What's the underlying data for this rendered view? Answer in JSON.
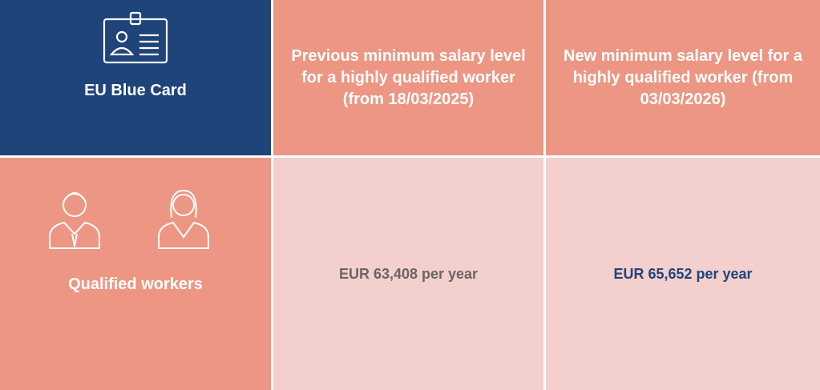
{
  "table": {
    "header": [
      "EU Blue Card",
      "Previous minimum salary level for a highly qualified worker (from 18/03/2025)",
      "New minimum salary level for a highly qualified worker (from 03/03/2026)"
    ],
    "rows": [
      [
        "Qualified workers",
        "EUR 63,408 per year",
        "EUR 65,652 per year"
      ]
    ]
  }
}
